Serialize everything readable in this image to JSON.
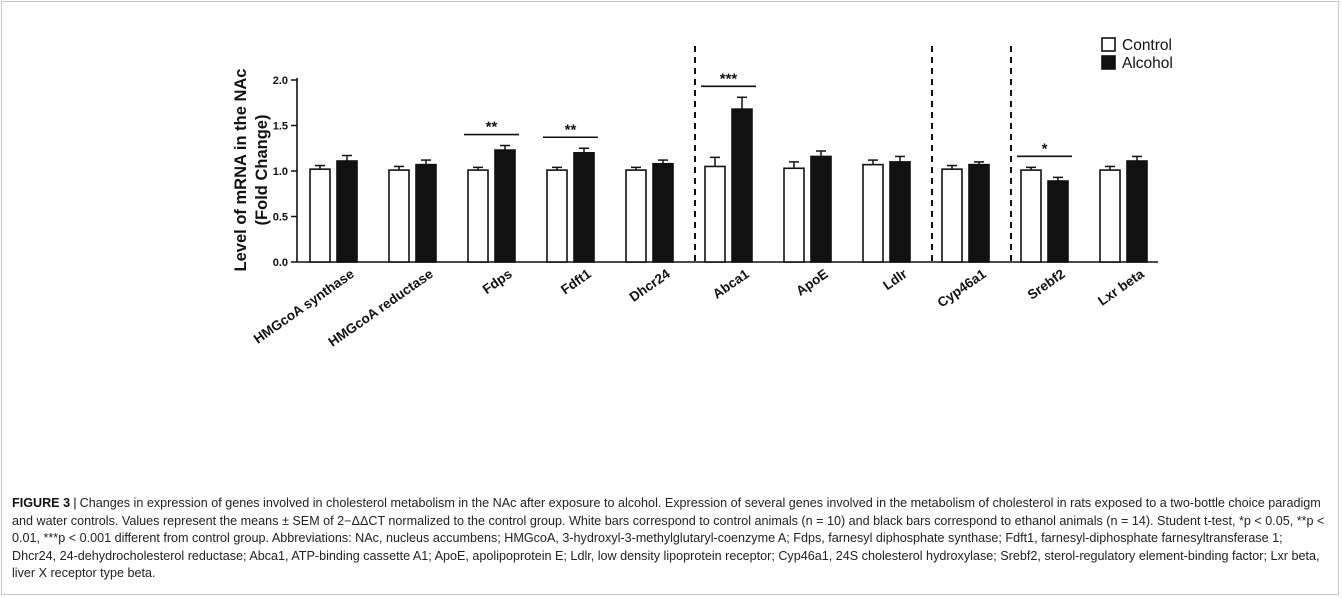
{
  "chart_data": {
    "type": "bar",
    "ylabel": "Level of mRNA in the NAc\n(Fold Change)",
    "ylim": [
      0,
      2.0
    ],
    "yticks": [
      "0.0",
      "0.5",
      "1.0",
      "1.5",
      "2.0"
    ],
    "categories": [
      "HMGcoA synthase",
      "HMGcoA reductase",
      "Fdps",
      "Fdft1",
      "Dhcr24",
      "Abca1",
      "ApoE",
      "Ldlr",
      "Cyp46a1",
      "Srebf2",
      "Lxr beta"
    ],
    "series": [
      {
        "name": "Control",
        "color": "#ffffff",
        "values": [
          1.02,
          1.01,
          1.01,
          1.01,
          1.01,
          1.05,
          1.03,
          1.07,
          1.02,
          1.01,
          1.01
        ],
        "errors": [
          0.04,
          0.04,
          0.03,
          0.03,
          0.03,
          0.1,
          0.07,
          0.05,
          0.04,
          0.03,
          0.04
        ]
      },
      {
        "name": "Alcohol",
        "color": "#111111",
        "values": [
          1.11,
          1.07,
          1.23,
          1.2,
          1.08,
          1.68,
          1.16,
          1.1,
          1.07,
          0.89,
          1.11
        ],
        "errors": [
          0.06,
          0.05,
          0.05,
          0.05,
          0.04,
          0.13,
          0.06,
          0.06,
          0.03,
          0.04,
          0.05
        ]
      }
    ],
    "significance": [
      {
        "category": "Fdps",
        "label": "**"
      },
      {
        "category": "Fdft1",
        "label": "**"
      },
      {
        "category": "Abca1",
        "label": "***"
      },
      {
        "category": "Srebf2",
        "label": "*"
      }
    ],
    "dividers_after": [
      "Dhcr24",
      "Ldlr",
      "Cyp46a1"
    ],
    "legend_position": "top-right"
  },
  "caption": {
    "label": "FIGURE 3",
    "separator": "|",
    "text": "Changes in expression of genes involved in cholesterol metabolism in the NAc after exposure to alcohol. Expression of several genes involved in the metabolism of cholesterol in rats exposed to a two-bottle choice paradigm and water controls. Values represent the means ± SEM of 2−ΔΔCT normalized to the control group. White bars correspond to control animals (n = 10) and black bars correspond to ethanol animals (n = 14). Student t-test, *p < 0.05, **p < 0.01, ***p < 0.001 different from control group. Abbreviations: NAc, nucleus accumbens; HMGcoA, 3-hydroxyl-3-methylglutaryl-coenzyme A; Fdps, farnesyl diphosphate synthase; Fdft1, farnesyl-diphosphate farnesyltransferase 1; Dhcr24, 24-dehydrocholesterol reductase; Abca1, ATP-binding cassette A1; ApoE, apolipoprotein E; Ldlr, low density lipoprotein receptor; Cyp46a1, 24S cholesterol hydroxylase; Srebf2, sterol-regulatory element-binding factor; Lxr beta, liver X receptor type beta."
  }
}
